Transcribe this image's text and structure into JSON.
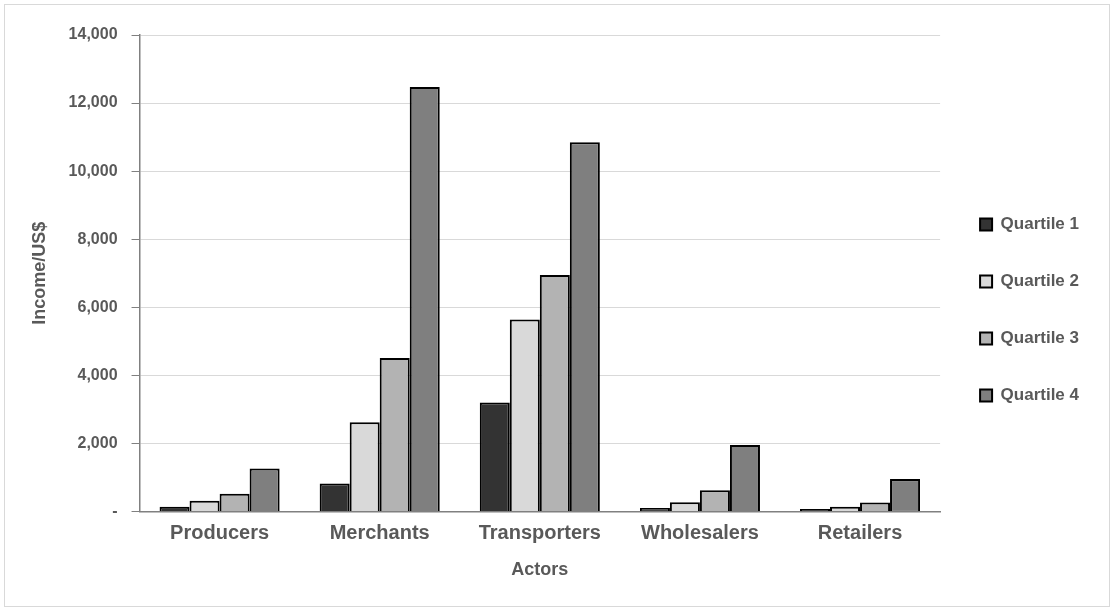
{
  "chart_data": {
    "type": "bar",
    "xlabel": "Actors",
    "ylabel": "Income/US$",
    "categories": [
      "Producers",
      "Merchants",
      "Transporters",
      "Wholesalers",
      "Retailers"
    ],
    "series": [
      {
        "name": "Quartile 1",
        "color": "#333333",
        "values": [
          140,
          820,
          3200,
          100,
          70
        ]
      },
      {
        "name": "Quartile 2",
        "color": "#d9d9d9",
        "values": [
          310,
          2620,
          5640,
          270,
          140
        ]
      },
      {
        "name": "Quartile 3",
        "color": "#b3b3b3",
        "values": [
          520,
          4510,
          6950,
          620,
          260
        ]
      },
      {
        "name": "Quartile 4",
        "color": "#7f7f7f",
        "values": [
          1260,
          12470,
          10850,
          1950,
          950
        ]
      }
    ],
    "ylim": [
      0,
      14000
    ],
    "yticks": [
      {
        "value": 0,
        "label": "-"
      },
      {
        "value": 2000,
        "label": "2,000"
      },
      {
        "value": 4000,
        "label": "4,000"
      },
      {
        "value": 6000,
        "label": "6,000"
      },
      {
        "value": 8000,
        "label": "8,000"
      },
      {
        "value": 10000,
        "label": "10,000"
      },
      {
        "value": 12000,
        "label": "12,000"
      },
      {
        "value": 14000,
        "label": "14,000"
      }
    ],
    "grid": "y",
    "legend": "right"
  }
}
